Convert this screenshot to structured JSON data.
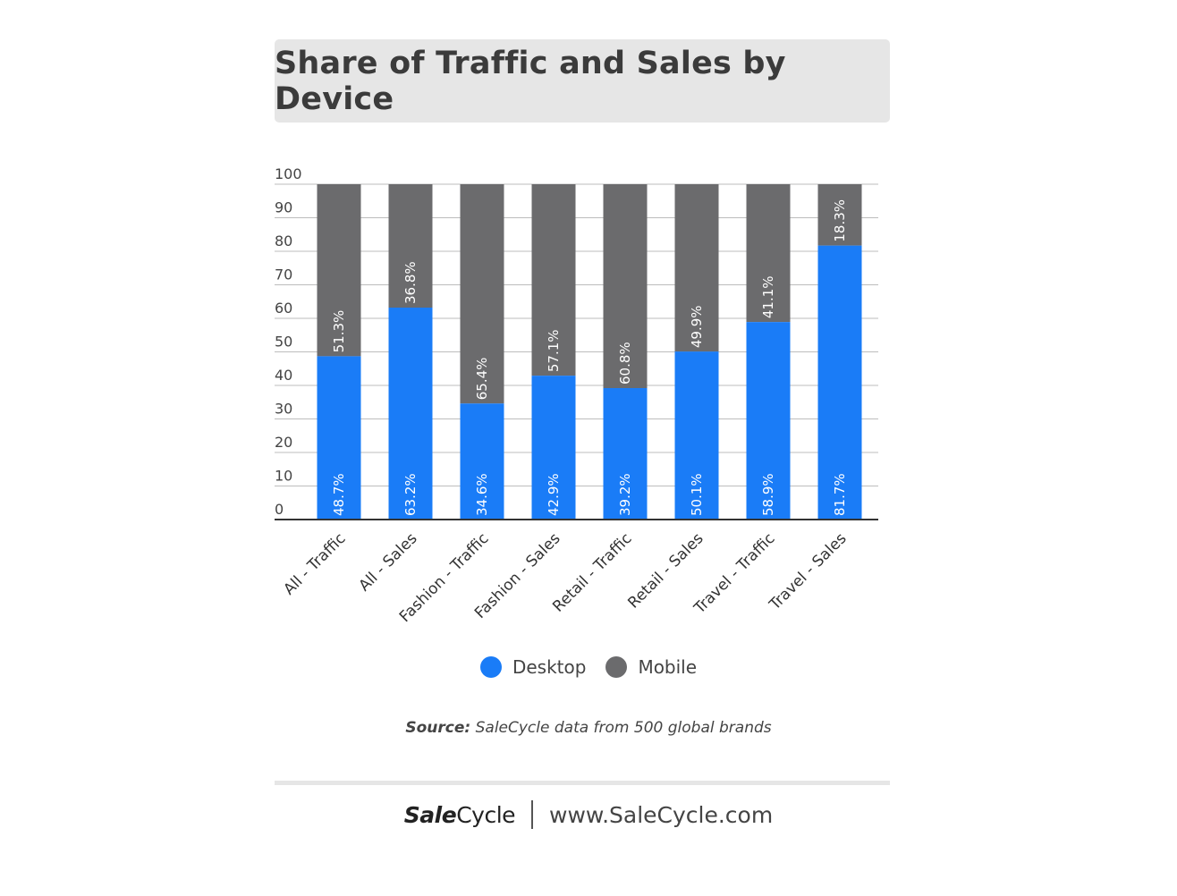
{
  "header": {
    "title": "Share of Traffic and Sales by Device"
  },
  "chart_data": {
    "type": "bar",
    "stacked": true,
    "categories": [
      "All - Traffic",
      "All - Sales",
      "Fashion - Traffic",
      "Fashion - Sales",
      "Retail - Traffic",
      "Retail - Sales",
      "Travel - Traffic",
      "Travel - Sales"
    ],
    "series": [
      {
        "name": "Desktop",
        "color": "#1a7cf7",
        "values": [
          48.7,
          63.2,
          34.6,
          42.9,
          39.2,
          50.1,
          58.9,
          81.7
        ],
        "labels": [
          "48.7%",
          "63.2%",
          "34.6%",
          "42.9%",
          "39.2%",
          "50.1%",
          "58.9%",
          "81.7%"
        ]
      },
      {
        "name": "Mobile",
        "color": "#6b6b6d",
        "values": [
          51.3,
          36.8,
          65.4,
          57.1,
          60.8,
          49.9,
          41.1,
          18.3
        ],
        "labels": [
          "51.3%",
          "36.8%",
          "65.4%",
          "57.1%",
          "60.8%",
          "49.9%",
          "41.1%",
          "18.3%"
        ]
      }
    ],
    "ylim": [
      0,
      100
    ],
    "yticks": [
      "0",
      "10",
      "20",
      "30",
      "40",
      "50",
      "60",
      "70",
      "80",
      "90",
      "100"
    ],
    "grid": true,
    "legend_position": "bottom"
  },
  "legend": {
    "desktop": "Desktop",
    "mobile": "Mobile"
  },
  "source": {
    "label": "Source:",
    "text": "SaleCycle data from 500 global brands"
  },
  "footer": {
    "brand_bold": "Sale",
    "brand_rest": "Cycle",
    "url": "www.SaleCycle.com"
  }
}
